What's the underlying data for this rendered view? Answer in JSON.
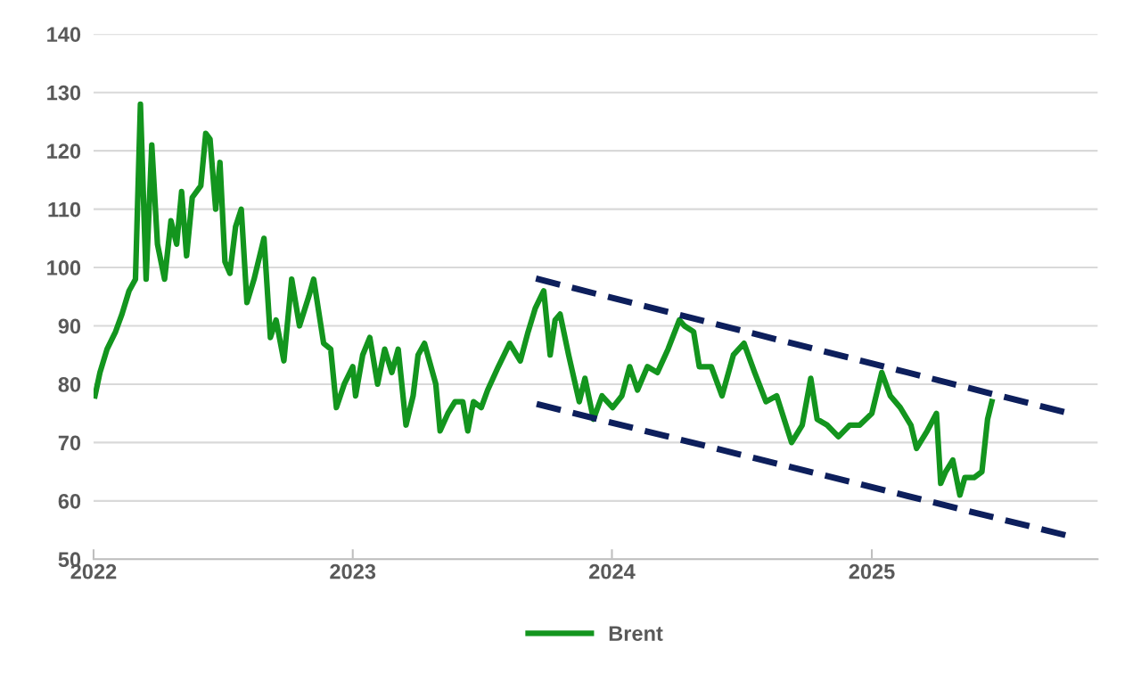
{
  "chart_data": {
    "type": "line",
    "legend": "bottom",
    "grid": "y",
    "xlim": [
      "2022-01-01",
      "2025-11-15"
    ],
    "ylim": [
      50,
      140
    ],
    "xticks": [
      {
        "value": "2022-01-01",
        "label": "2022"
      },
      {
        "value": "2023-01-01",
        "label": "2023"
      },
      {
        "value": "2024-01-01",
        "label": "2024"
      },
      {
        "value": "2025-01-01",
        "label": "2025"
      }
    ],
    "yticks": [
      50,
      60,
      70,
      80,
      90,
      100,
      110,
      120,
      130,
      140
    ],
    "series": [
      {
        "name": "Brent",
        "color": "#13951e",
        "line_style": "solid",
        "x": [
          "2022-01-03",
          "2022-01-10",
          "2022-01-20",
          "2022-02-01",
          "2022-02-10",
          "2022-02-20",
          "2022-03-01",
          "2022-03-08",
          "2022-03-16",
          "2022-03-24",
          "2022-04-01",
          "2022-04-11",
          "2022-04-20",
          "2022-04-28",
          "2022-05-05",
          "2022-05-12",
          "2022-05-20",
          "2022-06-01",
          "2022-06-08",
          "2022-06-14",
          "2022-06-22",
          "2022-06-28",
          "2022-07-05",
          "2022-07-12",
          "2022-07-20",
          "2022-07-28",
          "2022-08-05",
          "2022-08-15",
          "2022-08-29",
          "2022-09-07",
          "2022-09-15",
          "2022-09-26",
          "2022-10-07",
          "2022-10-18",
          "2022-10-31",
          "2022-11-07",
          "2022-11-21",
          "2022-12-01",
          "2022-12-09",
          "2022-12-20",
          "2023-01-01",
          "2023-01-05",
          "2023-01-15",
          "2023-01-25",
          "2023-02-05",
          "2023-02-15",
          "2023-02-25",
          "2023-03-06",
          "2023-03-17",
          "2023-03-27",
          "2023-04-03",
          "2023-04-12",
          "2023-04-28",
          "2023-05-04",
          "2023-05-15",
          "2023-05-25",
          "2023-06-05",
          "2023-06-12",
          "2023-06-20",
          "2023-07-01",
          "2023-07-10",
          "2023-07-25",
          "2023-08-10",
          "2023-08-25",
          "2023-09-05",
          "2023-09-15",
          "2023-09-27",
          "2023-10-06",
          "2023-10-13",
          "2023-10-20",
          "2023-11-01",
          "2023-11-16",
          "2023-11-24",
          "2023-12-06",
          "2023-12-18",
          "2024-01-02",
          "2024-01-15",
          "2024-01-26",
          "2024-02-06",
          "2024-02-20",
          "2024-03-05",
          "2024-03-20",
          "2024-04-05",
          "2024-04-12",
          "2024-04-25",
          "2024-05-03",
          "2024-05-20",
          "2024-06-04",
          "2024-06-20",
          "2024-07-05",
          "2024-07-20",
          "2024-08-05",
          "2024-08-20",
          "2024-09-10",
          "2024-09-25",
          "2024-10-07",
          "2024-10-16",
          "2024-10-30",
          "2024-11-15",
          "2024-12-01",
          "2024-12-15",
          "2025-01-01",
          "2025-01-15",
          "2025-01-27",
          "2025-02-10",
          "2025-02-25",
          "2025-03-05",
          "2025-03-20",
          "2025-04-02",
          "2025-04-08",
          "2025-04-15",
          "2025-04-25",
          "2025-05-05",
          "2025-05-12",
          "2025-05-25",
          "2025-06-05",
          "2025-06-13",
          "2025-06-19"
        ],
        "values": [
          78,
          82,
          86,
          89,
          92,
          96,
          98,
          128,
          98,
          121,
          104,
          98,
          108,
          104,
          113,
          102,
          112,
          114,
          123,
          122,
          110,
          118,
          101,
          99,
          107,
          110,
          94,
          98,
          105,
          88,
          91,
          84,
          98,
          90,
          95,
          98,
          87,
          86,
          76,
          80,
          83,
          78,
          85,
          88,
          80,
          86,
          82,
          86,
          73,
          78,
          85,
          87,
          80,
          72,
          75,
          77,
          77,
          72,
          77,
          76,
          79,
          83,
          87,
          84,
          89,
          93,
          96,
          85,
          91,
          92,
          85,
          77,
          81,
          74,
          78,
          76,
          78,
          83,
          79,
          83,
          82,
          86,
          91,
          90,
          89,
          83,
          83,
          78,
          85,
          87,
          82,
          77,
          78,
          70,
          73,
          81,
          74,
          73,
          71,
          73,
          73,
          75,
          82,
          78,
          76,
          73,
          69,
          72,
          75,
          63,
          65,
          67,
          61,
          64,
          64,
          65,
          74,
          77
        ]
      },
      {
        "color": "#0d1f5c",
        "line_style": "dashed",
        "x": [
          "2023-09-16",
          "2025-10-03"
        ],
        "values": [
          98.1,
          75.1
        ]
      },
      {
        "color": "#0d1f5c",
        "line_style": "dashed",
        "x": [
          "2023-09-17",
          "2025-10-05"
        ],
        "values": [
          76.6,
          54.0
        ]
      }
    ]
  }
}
